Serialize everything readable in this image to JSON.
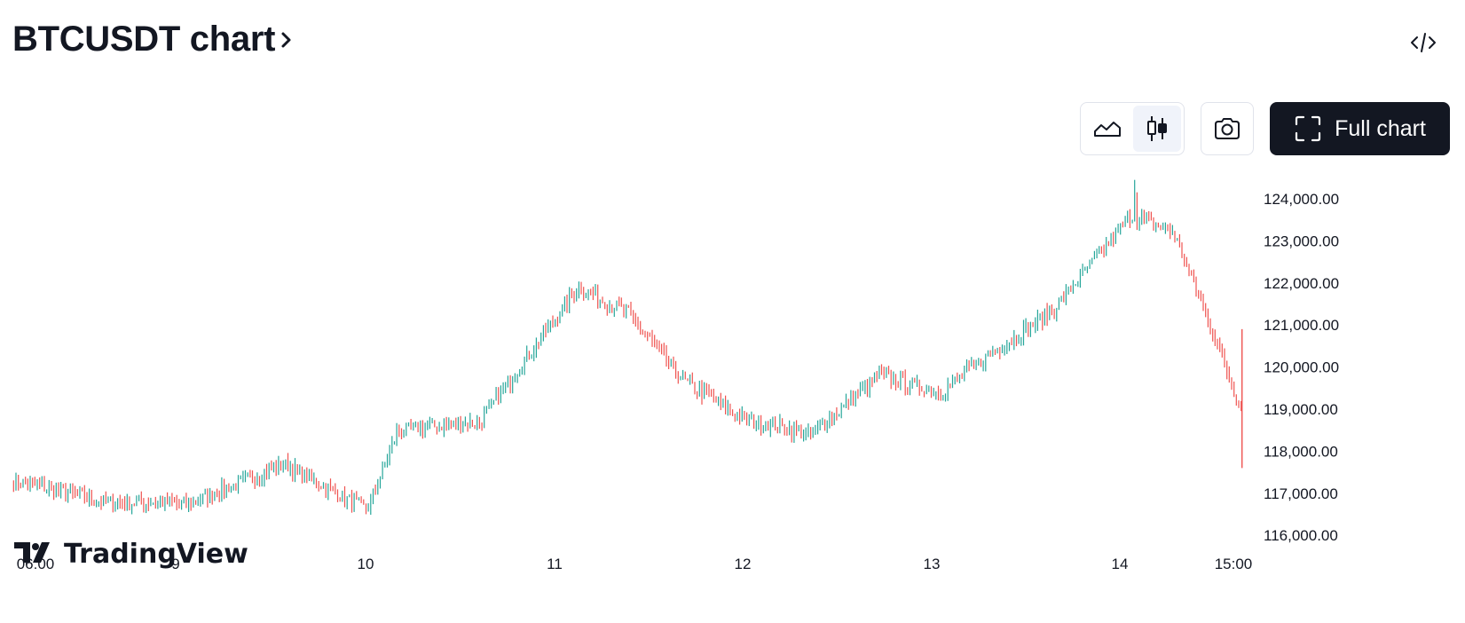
{
  "header": {
    "title": "BTCUSDT chart"
  },
  "toolbar": {
    "embed_icon": "code-embed-icon",
    "chart_styles": [
      {
        "name": "area",
        "icon": "area-chart-icon",
        "active": false
      },
      {
        "name": "candles",
        "icon": "candlestick-icon",
        "active": true
      }
    ],
    "snapshot_icon": "camera-icon",
    "full_chart_label": "Full chart",
    "full_chart_icon": "fullscreen-icon"
  },
  "watermark": {
    "brand": "TradingView",
    "logo_icon": "tradingview-logo-icon"
  },
  "colors": {
    "up": "#26a69a",
    "down": "#ef5350",
    "text": "#131722",
    "button_dark": "#131722",
    "border": "#e0e3eb"
  },
  "chart_data": {
    "type": "candlestick",
    "symbol": "BTCUSDT",
    "x_tick_labels": [
      "06:00",
      "9",
      "10",
      "11",
      "12",
      "13",
      "14",
      "15:00"
    ],
    "y_tick_labels": [
      "124,000.00",
      "123,000.00",
      "122,000.00",
      "121,000.00",
      "120,000.00",
      "119,000.00",
      "118,000.00",
      "117,000.00",
      "116,000.00"
    ],
    "y_ticks": [
      124000,
      123000,
      122000,
      121000,
      120000,
      119000,
      118000,
      117000,
      116000
    ],
    "ylim": [
      115700,
      124600
    ],
    "grid": false,
    "legend": "none",
    "close_path_approx": [
      {
        "t": "Aug 8 06:00",
        "close": 117300
      },
      {
        "t": "Aug 8 12:00",
        "close": 116800
      },
      {
        "t": "Aug 9 00:00",
        "close": 116750
      },
      {
        "t": "Aug 9 12:00",
        "close": 117700
      },
      {
        "t": "Aug 10 00:00",
        "close": 116600
      },
      {
        "t": "Aug 10 06:00",
        "close": 118500
      },
      {
        "t": "Aug 10 18:00",
        "close": 118700
      },
      {
        "t": "Aug 11 06:00",
        "close": 121900
      },
      {
        "t": "Aug 11 12:00",
        "close": 121300
      },
      {
        "t": "Aug 11 18:00",
        "close": 119700
      },
      {
        "t": "Aug 12 00:00",
        "close": 118800
      },
      {
        "t": "Aug 12 12:00",
        "close": 118400
      },
      {
        "t": "Aug 12 18:00",
        "close": 119800
      },
      {
        "t": "Aug 13 06:00",
        "close": 119400
      },
      {
        "t": "Aug 13 12:00",
        "close": 120300
      },
      {
        "t": "Aug 13 18:00",
        "close": 121300
      },
      {
        "t": "Aug 14 00:00",
        "close": 123600
      },
      {
        "t": "Aug 14 06:00",
        "close": 123200
      },
      {
        "t": "Aug 14 12:00",
        "close": 121000
      },
      {
        "t": "Aug 14 15:00",
        "close": 119000
      }
    ],
    "extremes": {
      "high": 124450,
      "low": 115850,
      "final_wick_low": 117600
    }
  }
}
